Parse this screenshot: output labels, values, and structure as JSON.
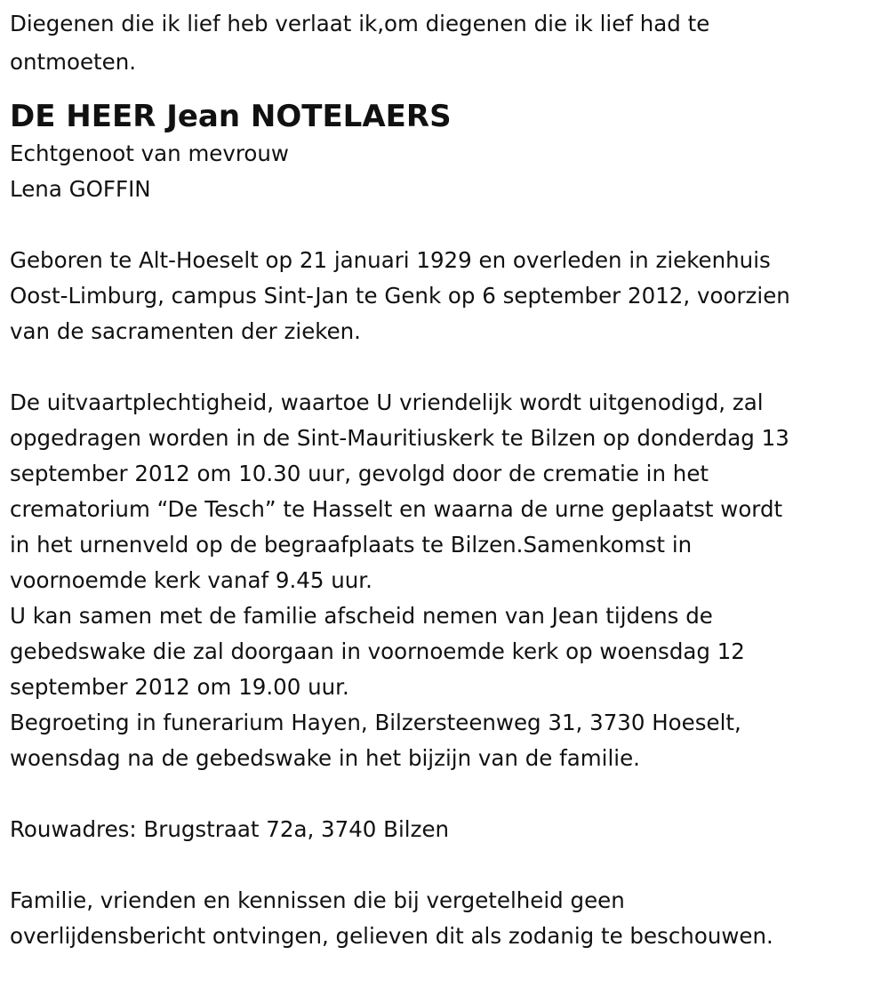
{
  "intro": [
    "Diegenen die ik lief heb verlaat ik,om diegenen die ik lief had te",
    "ontmoeten."
  ],
  "title": "DE HEER Jean NOTELAERS",
  "spouse": [
    "Echtgenoot van mevrouw",
    "Lena GOFFIN"
  ],
  "birth": [
    "Geboren te Alt-Hoeselt op 21 januari 1929 en overleden in ziekenhuis",
    "Oost-Limburg, campus Sint-Jan te Genk op 6 september 2012, voorzien",
    "van de sacramenten der zieken."
  ],
  "funeral": [
    "De uitvaartplechtigheid, waartoe U vriendelijk wordt uitgenodigd, zal",
    "opgedragen worden in de Sint-Mauritiuskerk te Bilzen op donderdag 13",
    "september 2012 om 10.30 uur, gevolgd door de crematie in het",
    "crematorium “De Tesch” te Hasselt en waarna de urne geplaatst wordt",
    "in het urnenveld op de begraafplaats te Bilzen.Samenkomst in",
    "voornoemde kerk vanaf 9.45 uur.",
    "U kan samen met de familie afscheid nemen van Jean tijdens de",
    "gebedswake die zal doorgaan in voornoemde kerk op woensdag 12",
    "september 2012 om 19.00 uur.",
    "Begroeting in funerarium Hayen, Bilzersteenweg 31, 3730 Hoeselt,",
    "woensdag na de gebedswake in het bijzijn van de familie."
  ],
  "address": [
    "Rouwadres: Brugstraat 72a, 3740 Bilzen"
  ],
  "closing": [
    "Familie, vrienden en kennissen die bij vergetelheid geen",
    "overlijdensbericht ontvingen, gelieven dit als zodanig te beschouwen."
  ]
}
